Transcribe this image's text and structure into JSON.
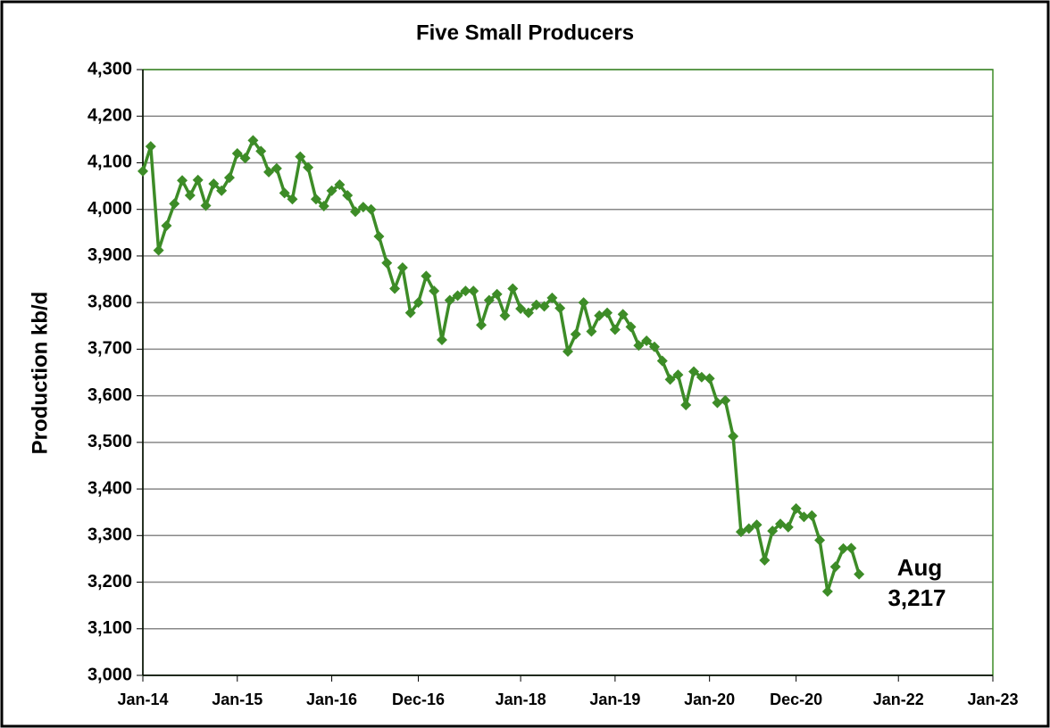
{
  "chart_data": {
    "type": "line",
    "title": "Five Small Producers",
    "y_label": "Production kb/d",
    "annotations": [
      "Aug",
      "3,217"
    ],
    "x": [
      "2014-01",
      "2014-02",
      "2014-03",
      "2014-04",
      "2014-05",
      "2014-06",
      "2014-07",
      "2014-08",
      "2014-09",
      "2014-10",
      "2014-11",
      "2014-12",
      "2015-01",
      "2015-02",
      "2015-03",
      "2015-04",
      "2015-05",
      "2015-06",
      "2015-07",
      "2015-08",
      "2015-09",
      "2015-10",
      "2015-11",
      "2015-12",
      "2016-01",
      "2016-02",
      "2016-03",
      "2016-04",
      "2016-05",
      "2016-06",
      "2016-07",
      "2016-08",
      "2016-09",
      "2016-10",
      "2016-11",
      "2016-12",
      "2017-01",
      "2017-02",
      "2017-03",
      "2017-04",
      "2017-05",
      "2017-06",
      "2017-07",
      "2017-08",
      "2017-09",
      "2017-10",
      "2017-11",
      "2017-12",
      "2018-01",
      "2018-02",
      "2018-03",
      "2018-04",
      "2018-05",
      "2018-06",
      "2018-07",
      "2018-08",
      "2018-09",
      "2018-10",
      "2018-11",
      "2018-12",
      "2019-01",
      "2019-02",
      "2019-03",
      "2019-04",
      "2019-05",
      "2019-06",
      "2019-07",
      "2019-08",
      "2019-09",
      "2019-10",
      "2019-11",
      "2019-12",
      "2020-01",
      "2020-02",
      "2020-03",
      "2020-04",
      "2020-05",
      "2020-06",
      "2020-07",
      "2020-08",
      "2020-09",
      "2020-10",
      "2020-11",
      "2020-12",
      "2021-01",
      "2021-02",
      "2021-03",
      "2021-04",
      "2021-05",
      "2021-06",
      "2021-07",
      "2021-08"
    ],
    "series": [
      {
        "name": "Five Small Producers",
        "color": "#3d8c27",
        "values": [
          4082,
          4135,
          3912,
          3965,
          4012,
          4062,
          4030,
          4063,
          4008,
          4055,
          4040,
          4068,
          4120,
          4110,
          4148,
          4125,
          4080,
          4088,
          4035,
          4022,
          4113,
          4090,
          4022,
          4007,
          4040,
          4053,
          4030,
          3995,
          4005,
          4000,
          3942,
          3885,
          3830,
          3875,
          3778,
          3800,
          3857,
          3825,
          3720,
          3805,
          3815,
          3825,
          3825,
          3752,
          3805,
          3818,
          3772,
          3830,
          3787,
          3778,
          3795,
          3792,
          3810,
          3788,
          3695,
          3732,
          3800,
          3738,
          3772,
          3778,
          3742,
          3775,
          3748,
          3708,
          3718,
          3705,
          3675,
          3635,
          3645,
          3580,
          3652,
          3640,
          3637,
          3585,
          3590,
          3513,
          3308,
          3315,
          3323,
          3247,
          3310,
          3325,
          3318,
          3358,
          3340,
          3343,
          3290,
          3180,
          3233,
          3272,
          3273,
          3217
        ]
      }
    ],
    "xlim": [
      "2014-01",
      "2023-01"
    ],
    "xticks": [
      {
        "value": "2014-01",
        "label": "Jan-14"
      },
      {
        "value": "2015-01",
        "label": "Jan-15"
      },
      {
        "value": "2016-01",
        "label": "Jan-16"
      },
      {
        "value": "2016-12",
        "label": "Dec-16"
      },
      {
        "value": "2018-01",
        "label": "Jan-18"
      },
      {
        "value": "2019-01",
        "label": "Jan-19"
      },
      {
        "value": "2020-01",
        "label": "Jan-20"
      },
      {
        "value": "2020-12",
        "label": "Dec-20"
      },
      {
        "value": "2022-01",
        "label": "Jan-22"
      },
      {
        "value": "2023-01",
        "label": "Jan-23"
      }
    ],
    "ylim": [
      3000,
      4300
    ],
    "yticks": [
      {
        "value": 3000,
        "label": "3,000"
      },
      {
        "value": 3100,
        "label": "3,100"
      },
      {
        "value": 3200,
        "label": "3,200"
      },
      {
        "value": 3300,
        "label": "3,300"
      },
      {
        "value": 3400,
        "label": "3,400"
      },
      {
        "value": 3500,
        "label": "3,500"
      },
      {
        "value": 3600,
        "label": "3,600"
      },
      {
        "value": 3700,
        "label": "3,700"
      },
      {
        "value": 3800,
        "label": "3,800"
      },
      {
        "value": 3900,
        "label": "3,900"
      },
      {
        "value": 4000,
        "label": "4,000"
      },
      {
        "value": 4100,
        "label": "4,100"
      },
      {
        "value": 4200,
        "label": "4,200"
      },
      {
        "value": 4300,
        "label": "4,300"
      }
    ],
    "grid": true
  }
}
